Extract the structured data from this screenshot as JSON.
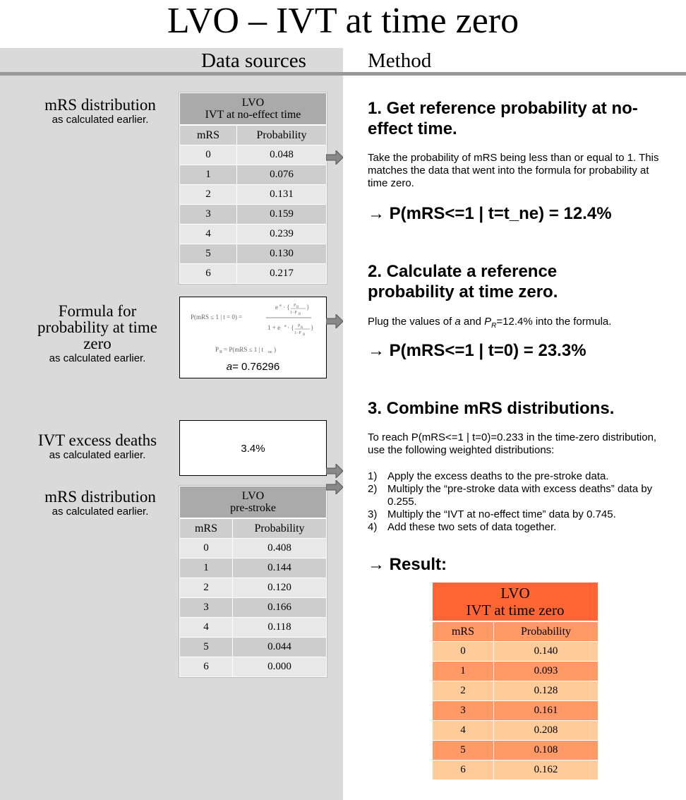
{
  "title": "LVO – IVT at time zero",
  "headers": {
    "sources": "Data sources",
    "method": "Method"
  },
  "sources": {
    "mrs1": {
      "label": "mRS distribution",
      "sub": "as calculated earlier."
    },
    "formula": {
      "label_line1": "Formula for",
      "label_line2": "probability at time",
      "label_line3": "zero",
      "sub": "as calculated earlier.",
      "a_label": "a",
      "a_value": "= 0.76296"
    },
    "excess": {
      "label": "IVT excess deaths",
      "sub": "as calculated earlier.",
      "value": "3.4%"
    },
    "mrs2": {
      "label": "mRS distribution",
      "sub": "as calculated earlier."
    }
  },
  "table_noeffect": {
    "caption_line1": "LVO",
    "caption_line2": "IVT at no-effect time",
    "col_mrs": "mRS",
    "col_prob": "Probability",
    "rows": [
      [
        "0",
        "0.048"
      ],
      [
        "1",
        "0.076"
      ],
      [
        "2",
        "0.131"
      ],
      [
        "3",
        "0.159"
      ],
      [
        "4",
        "0.239"
      ],
      [
        "5",
        "0.130"
      ],
      [
        "6",
        "0.217"
      ]
    ]
  },
  "table_prestroke": {
    "caption_line1": "LVO",
    "caption_line2": "pre-stroke",
    "col_mrs": "mRS",
    "col_prob": "Probability",
    "rows": [
      [
        "0",
        "0.408"
      ],
      [
        "1",
        "0.144"
      ],
      [
        "2",
        "0.120"
      ],
      [
        "3",
        "0.166"
      ],
      [
        "4",
        "0.118"
      ],
      [
        "5",
        "0.044"
      ],
      [
        "6",
        "0.000"
      ]
    ]
  },
  "table_result": {
    "caption_line1": "LVO",
    "caption_line2": "IVT at time zero",
    "col_mrs": "mRS",
    "col_prob": "Probability",
    "rows": [
      [
        "0",
        "0.140"
      ],
      [
        "1",
        "0.093"
      ],
      [
        "2",
        "0.128"
      ],
      [
        "3",
        "0.161"
      ],
      [
        "4",
        "0.208"
      ],
      [
        "5",
        "0.108"
      ],
      [
        "6",
        "0.162"
      ]
    ]
  },
  "method": {
    "step1": {
      "heading": "1. Get reference probability at no-effect time.",
      "body": "Take the probability of mRS being less than or equal to 1. This matches the data that went into the formula for probability at time zero.",
      "result": "→ P(mRS<=1 | t=t_ne) = 12.4%"
    },
    "step2": {
      "heading": "2. Calculate a reference probability at time zero.",
      "body_pre": "Plug the values of ",
      "body_a": "a",
      "body_mid": " and ",
      "body_p": "P",
      "body_sub": "R",
      "body_post": "=12.4% into the formula.",
      "result": "→ P(mRS<=1 | t=0) = 23.3%"
    },
    "step3": {
      "heading": "3. Combine mRS distributions.",
      "body": "To reach P(mRS<=1 | t=0)=0.233 in the time-zero distribution, use the following weighted distributions:",
      "items": [
        {
          "num": "1)",
          "text": "Apply the excess deaths to the pre-stroke data."
        },
        {
          "num": "2)",
          "text": "Multiply the “pre-stroke data with excess deaths” data by 0.255."
        },
        {
          "num": "3)",
          "text": "Multiply the “IVT at no-effect time” data by 0.745."
        },
        {
          "num": "4)",
          "text": "Add these two sets of data together."
        }
      ],
      "result": "→ Result:"
    }
  },
  "colors": {
    "panel": "#dadada",
    "rule": "#999999",
    "result_header": "#ff6633",
    "result_light": "#ffcc99",
    "result_mid": "#ff9966"
  }
}
